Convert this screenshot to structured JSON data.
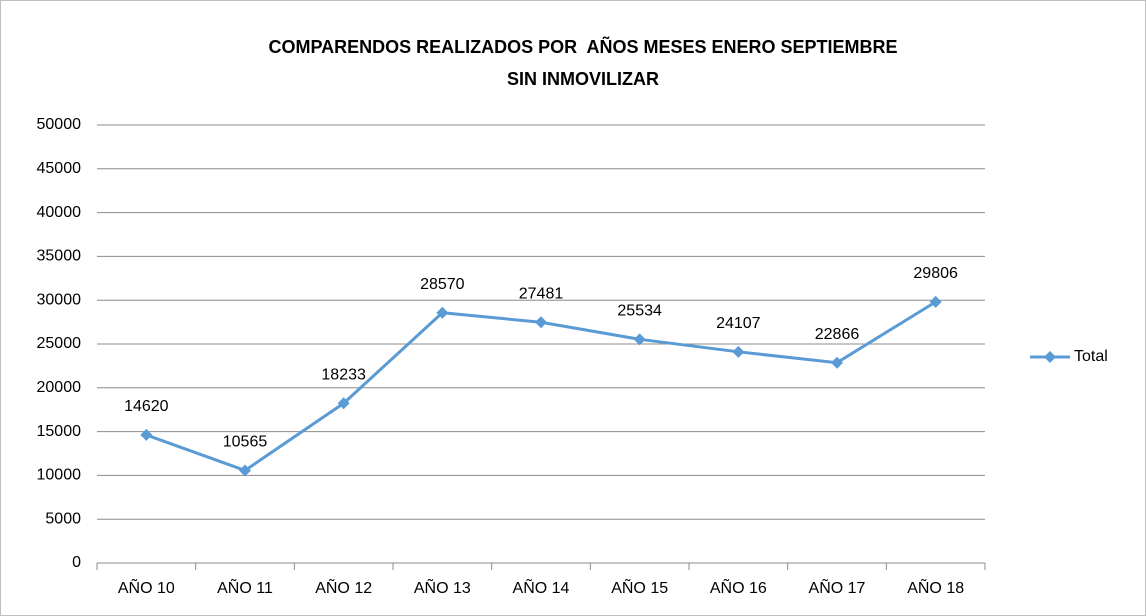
{
  "chart_data": {
    "type": "line",
    "title": [
      "COMPARENDOS REALIZADOS POR  AÑOS MESES ENERO SEPTIEMBRE",
      "SIN INMOVILIZAR"
    ],
    "categories": [
      "AÑO 10",
      "AÑO 11",
      "AÑO 12",
      "AÑO 13",
      "AÑO 14",
      "AÑO 15",
      "AÑO 16",
      "AÑO 17",
      "AÑO 18"
    ],
    "series": [
      {
        "name": "Total",
        "color": "#5b9bd5",
        "values": [
          14620,
          10565,
          18233,
          28570,
          27481,
          25534,
          24107,
          22866,
          29806
        ]
      }
    ],
    "ylim": [
      0,
      50000
    ],
    "yticks": [
      0,
      5000,
      10000,
      15000,
      20000,
      25000,
      30000,
      35000,
      40000,
      45000,
      50000
    ],
    "grid": true,
    "legend": "right"
  }
}
